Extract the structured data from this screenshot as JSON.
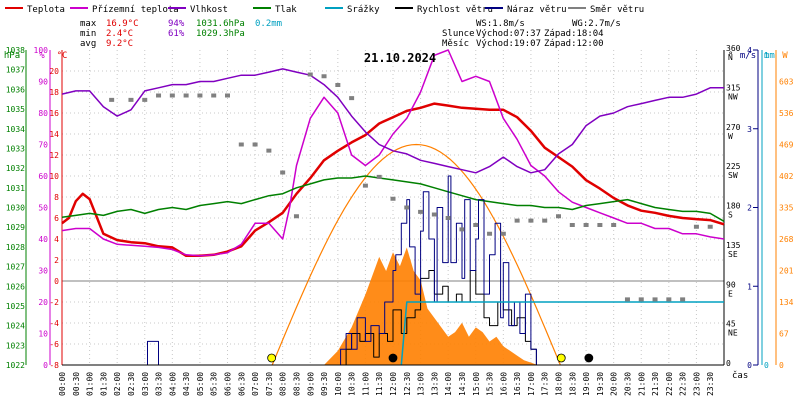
{
  "chart_data": {
    "type": "line",
    "title": "21.10.2024",
    "xlabel": "čas",
    "x_ticks": [
      "00:00",
      "00:30",
      "01:00",
      "01:30",
      "02:00",
      "02:30",
      "03:00",
      "03:30",
      "04:00",
      "04:30",
      "05:00",
      "05:30",
      "06:00",
      "06:30",
      "07:00",
      "07:30",
      "08:00",
      "08:30",
      "09:00",
      "09:30",
      "10:00",
      "10:30",
      "11:00",
      "11:30",
      "12:00",
      "12:30",
      "13:00",
      "13:30",
      "14:00",
      "14:30",
      "15:00",
      "15:30",
      "16:00",
      "16:30",
      "17:00",
      "17:30",
      "18:00",
      "18:30",
      "19:00",
      "19:30",
      "20:00",
      "20:30",
      "21:00",
      "21:30",
      "22:00",
      "22:30",
      "23:00",
      "23:30"
    ],
    "legend": [
      {
        "label": "Teplota",
        "color": "#e00000",
        "style": "line"
      },
      {
        "label": "Přízemní teplota",
        "color": "#cc00cc",
        "style": "line"
      },
      {
        "label": "Vlhkost",
        "color": "#8000c0",
        "style": "line"
      },
      {
        "label": "Tlak",
        "color": "#008000",
        "style": "line"
      },
      {
        "label": "Srážky",
        "color": "#00a0c0",
        "style": "line"
      },
      {
        "label": "Rychlost větru",
        "color": "#000000",
        "style": "line"
      },
      {
        "label": "Náraz větru",
        "color": "#000080",
        "style": "line"
      },
      {
        "label": "Směr větru",
        "color": "#808080",
        "style": "line"
      }
    ],
    "stats": {
      "max": {
        "label": "max",
        "temp": "16.9°C",
        "hum": "94%",
        "press": "1031.6hPa",
        "rain": "0.2mm"
      },
      "min": {
        "label": "min",
        "temp": "2.4°C",
        "hum": "61%",
        "press": "1029.3hPa"
      },
      "avg": {
        "label": "avg",
        "temp": "9.2°C"
      }
    },
    "info": {
      "ws": "WS:1.8m/s",
      "wg": "WG:2.7m/s",
      "sun_label": "Slunce",
      "sun_rise": "Východ:07:37",
      "sun_set": "Západ:18:04",
      "moon_label": "Měsíc",
      "moon_rise": "Východ:19:07",
      "moon_set": "Západ:12:00"
    },
    "axes": {
      "press": {
        "unit": "hPa",
        "range": [
          1022,
          1038
        ],
        "ticks": [
          "1038",
          "1037",
          "1036",
          "1035",
          "1034",
          "1033",
          "1032",
          "1031",
          "1030",
          "1029",
          "1028",
          "1027",
          "1026",
          "1025",
          "1024",
          "1023",
          "1022"
        ]
      },
      "hum": {
        "unit": "%",
        "range": [
          0,
          100
        ],
        "ticks": [
          "100",
          "90",
          "80",
          "70",
          "60",
          "50",
          "40",
          "30",
          "20",
          "10",
          "0"
        ]
      },
      "temp": {
        "unit": "°C",
        "range": [
          -8,
          22
        ],
        "ticks": [
          "20",
          "18",
          "16",
          "14",
          "12",
          "10",
          "8",
          "6",
          "4",
          "2",
          "0",
          "-2",
          "-4",
          "-6",
          "-8"
        ]
      },
      "dir": {
        "unit": "°",
        "range": [
          0,
          360
        ],
        "ticks": [
          {
            "v": "360",
            "d": "N"
          },
          {
            "v": "315",
            "d": "NW"
          },
          {
            "v": "270",
            "d": "W"
          },
          {
            "v": "225",
            "d": "SW"
          },
          {
            "v": "180",
            "d": "S"
          },
          {
            "v": "135",
            "d": "SE"
          },
          {
            "v": "90",
            "d": "E"
          },
          {
            "v": "45",
            "d": "NE"
          },
          {
            "v": "0",
            "d": ""
          }
        ]
      },
      "wind": {
        "unit": "m/s",
        "range": [
          0,
          4
        ],
        "ticks": [
          "4",
          "3",
          "2",
          "1",
          "0"
        ]
      },
      "rain": {
        "unit": "mm",
        "range": [
          0,
          1
        ],
        "ticks": [
          "1",
          "0"
        ]
      },
      "solar": {
        "unit": "W",
        "range": [
          0,
          670
        ],
        "ticks": [
          "603",
          "536",
          "469",
          "402",
          "335",
          "268",
          "201",
          "134",
          "67",
          "0"
        ]
      }
    },
    "series": [
      {
        "name": "Teplota",
        "axis": "temp",
        "color": "#e00000",
        "x": [
          0,
          0.25,
          0.5,
          0.75,
          1,
          1.5,
          2,
          2.5,
          3,
          3.5,
          4,
          4.5,
          5,
          5.5,
          6,
          6.5,
          7,
          7.5,
          8,
          8.5,
          9,
          9.5,
          10,
          10.5,
          11,
          11.5,
          12,
          12.5,
          13,
          13.5,
          14,
          14.5,
          15,
          15.5,
          16,
          16.5,
          17,
          17.5,
          18,
          18.5,
          19,
          19.5,
          20,
          20.5,
          21,
          21.5,
          22,
          22.5,
          23,
          23.5,
          24
        ],
        "y": [
          5.5,
          6,
          7.6,
          8.3,
          7.8,
          4.5,
          3.9,
          3.7,
          3.6,
          3.3,
          3.2,
          2.4,
          2.4,
          2.5,
          2.8,
          3.3,
          4.8,
          5.6,
          6.5,
          8.3,
          9.8,
          11.5,
          12.4,
          13.2,
          13.9,
          15,
          15.6,
          16.2,
          16.5,
          16.9,
          16.7,
          16.5,
          16.4,
          16.3,
          16.3,
          15.6,
          14.3,
          12.7,
          11.8,
          10.9,
          9.6,
          8.8,
          7.9,
          7.2,
          6.7,
          6.5,
          6.2,
          6,
          5.9,
          5.8,
          5.4
        ]
      },
      {
        "name": "Přízemní teplota",
        "axis": "temp",
        "color": "#cc00cc",
        "x": [
          0,
          0.5,
          1,
          1.5,
          2,
          2.5,
          3,
          3.5,
          4,
          4.5,
          5,
          5.5,
          6,
          6.5,
          7,
          7.5,
          8,
          8.25,
          8.5,
          9,
          9.5,
          10,
          10.5,
          11,
          11.5,
          12,
          12.5,
          13,
          13.5,
          14,
          14.5,
          15,
          15.5,
          16,
          16.5,
          17,
          17.5,
          18,
          18.5,
          19,
          19.5,
          20,
          20.5,
          21,
          21.5,
          22,
          22.5,
          23,
          23.5,
          24
        ],
        "y": [
          4.8,
          5,
          5,
          4,
          3.5,
          3.4,
          3.3,
          3.2,
          3,
          2.5,
          2.4,
          2.5,
          2.7,
          3.5,
          5.5,
          5.5,
          4,
          7,
          11,
          15.5,
          17.5,
          16,
          12,
          11,
          12,
          14,
          15.5,
          18,
          21.5,
          22,
          19,
          19.5,
          19,
          15.5,
          13.5,
          11,
          10,
          8.5,
          7.5,
          7,
          6.5,
          6,
          5.5,
          5.5,
          5,
          5,
          4.5,
          4.5,
          4.2,
          4
        ]
      },
      {
        "name": "Vlhkost",
        "axis": "hum",
        "color": "#8000c0",
        "x": [
          0,
          0.5,
          1,
          1.5,
          2,
          2.5,
          3,
          3.5,
          4,
          4.5,
          5,
          5.5,
          6,
          6.5,
          7,
          7.5,
          8,
          8.5,
          9,
          9.5,
          10,
          10.5,
          11,
          11.5,
          12,
          12.5,
          13,
          13.5,
          14,
          14.5,
          15,
          15.5,
          16,
          16.5,
          17,
          17.5,
          18,
          18.5,
          19,
          19.5,
          20,
          20.5,
          21,
          21.5,
          22,
          22.5,
          23,
          23.5,
          24
        ],
        "y": [
          86,
          87,
          87,
          82,
          79,
          81,
          87,
          88,
          89,
          89,
          90,
          90,
          91,
          92,
          92,
          93,
          94,
          93,
          92,
          89,
          85,
          79,
          74,
          70,
          68,
          67,
          65,
          64,
          63,
          62,
          61,
          63,
          66,
          63,
          61,
          62,
          67,
          70,
          76,
          79,
          80,
          82,
          83,
          84,
          85,
          85,
          86,
          88,
          88
        ]
      },
      {
        "name": "Tlak",
        "axis": "press",
        "color": "#008000",
        "x": [
          0,
          0.5,
          1,
          1.5,
          2,
          2.5,
          3,
          3.5,
          4,
          4.5,
          5,
          5.5,
          6,
          6.5,
          7,
          7.5,
          8,
          8.5,
          9,
          9.5,
          10,
          10.5,
          11,
          11.5,
          12,
          12.5,
          13,
          13.5,
          14,
          14.5,
          15,
          15.5,
          16,
          16.5,
          17,
          17.5,
          18,
          18.5,
          19,
          19.5,
          20,
          20.5,
          21,
          21.5,
          22,
          22.5,
          23,
          23.5,
          24
        ],
        "y": [
          1029.5,
          1029.6,
          1029.7,
          1029.6,
          1029.8,
          1029.9,
          1029.7,
          1029.9,
          1030,
          1029.9,
          1030.1,
          1030.2,
          1030.3,
          1030.2,
          1030.4,
          1030.6,
          1030.7,
          1031,
          1031.2,
          1031.4,
          1031.5,
          1031.5,
          1031.6,
          1031.5,
          1031.4,
          1031.3,
          1031.2,
          1031,
          1030.8,
          1030.6,
          1030.4,
          1030.3,
          1030.2,
          1030.1,
          1030.1,
          1030,
          1030,
          1029.9,
          1030.1,
          1030.2,
          1030.3,
          1030.4,
          1030.2,
          1030,
          1029.9,
          1029.8,
          1029.8,
          1029.7,
          1029.3
        ]
      },
      {
        "name": "Rychlost větru",
        "axis": "wind",
        "color": "#000000",
        "x": [
          0,
          9,
          10,
          10.3,
          10.5,
          10.8,
          11,
          11.3,
          11.5,
          11.8,
          12,
          12.3,
          12.5,
          12.8,
          13,
          13.3,
          13.5,
          13.8,
          14,
          14.3,
          14.5,
          14.8,
          15,
          15.3,
          15.5,
          15.8,
          16,
          16.3,
          16.5,
          16.8,
          17,
          17.2,
          24
        ],
        "y": [
          0,
          0,
          0,
          0.2,
          0.4,
          0.3,
          0.4,
          0.1,
          0.4,
          0.3,
          0.7,
          0.4,
          0.6,
          0.7,
          1.1,
          1.2,
          0.9,
          1,
          0.8,
          0.9,
          0.8,
          1.2,
          0.9,
          0.6,
          0.5,
          0.8,
          0.7,
          0.5,
          0.6,
          0.3,
          0.2,
          0,
          0
        ]
      },
      {
        "name": "Náraz větru",
        "axis": "wind",
        "color": "#000080",
        "x": [
          0,
          3,
          3.1,
          3.2,
          3.4,
          3.5,
          9,
          10,
          10.1,
          10.3,
          10.5,
          10.7,
          11,
          11.2,
          11.5,
          11.7,
          12,
          12.1,
          12.3,
          12.5,
          12.6,
          12.8,
          13,
          13.1,
          13.3,
          13.5,
          13.6,
          13.8,
          14,
          14.1,
          14.3,
          14.5,
          14.6,
          14.8,
          15,
          15.1,
          15.3,
          15.5,
          15.7,
          15.9,
          16,
          16.2,
          16.4,
          16.6,
          16.8,
          17,
          17.2,
          24
        ],
        "y": [
          0,
          0,
          0.3,
          0.3,
          0.3,
          0,
          0,
          0,
          0.2,
          0.4,
          0.2,
          0.6,
          0.3,
          0.5,
          0.4,
          0.8,
          1.2,
          1.4,
          1.8,
          2.1,
          1.5,
          0.9,
          1.7,
          2.2,
          1.6,
          0.8,
          2,
          1.3,
          2.4,
          1.3,
          1.8,
          1.1,
          2.1,
          1.2,
          1.6,
          2.1,
          0.9,
          1.4,
          1.8,
          0.6,
          1.3,
          0.5,
          0.8,
          0.4,
          0.9,
          0.2,
          0,
          0
        ]
      },
      {
        "name": "Srážky",
        "axis": "rain",
        "color": "#00a0c0",
        "x": [
          12.3,
          12.5,
          24
        ],
        "y": [
          0,
          0.2,
          0.2
        ]
      },
      {
        "name": "Směr větru",
        "axis": "dir",
        "color": "#808080",
        "x": [
          1.8,
          2.5,
          3,
          3.5,
          4,
          4.5,
          5,
          5.5,
          6,
          6.5,
          7,
          7.5,
          8,
          8.5,
          9,
          9.5,
          10,
          10.5,
          11,
          11.5,
          12,
          12.5,
          13,
          13.5,
          14,
          14.5,
          15,
          15.5,
          16,
          16.5,
          17,
          17.5,
          18,
          18.5,
          19,
          19.5,
          20,
          20.5,
          21,
          21.5,
          22,
          22.5,
          23,
          23.5
        ],
        "y": [
          303,
          303,
          303,
          308,
          308,
          308,
          308,
          308,
          308,
          252,
          252,
          245,
          220,
          170,
          332,
          330,
          320,
          305,
          205,
          215,
          190,
          180,
          175,
          172,
          168,
          155,
          160,
          150,
          150,
          165,
          165,
          165,
          170,
          160,
          160,
          160,
          160,
          75,
          75,
          75,
          75,
          75,
          158,
          158
        ]
      }
    ],
    "solar_radiation": {
      "axis": "solar",
      "color": "#ff8000",
      "x": [
        9.5,
        10,
        10.5,
        11,
        11.25,
        11.5,
        11.75,
        12,
        12.25,
        12.5,
        12.75,
        13,
        13.25,
        13.5,
        13.75,
        14,
        14.25,
        14.5,
        14.75,
        15,
        15.25,
        15.5,
        15.75,
        16,
        16.25,
        16.5,
        16.75,
        17,
        17.25
      ],
      "y": [
        0,
        30,
        80,
        150,
        190,
        230,
        200,
        240,
        210,
        250,
        200,
        180,
        120,
        100,
        80,
        60,
        70,
        90,
        60,
        80,
        70,
        50,
        60,
        40,
        30,
        20,
        10,
        5,
        0
      ]
    },
    "theoretical_solar": {
      "color": "#ff8000",
      "sunrise": 7.62,
      "sunset": 18.07,
      "peak": "469"
    },
    "markers": [
      {
        "type": "sunrise",
        "x": 7.6,
        "color": "#ffff00"
      },
      {
        "type": "moonset",
        "x": 12,
        "color": "#000000"
      },
      {
        "type": "sunset",
        "x": 18.1,
        "color": "#ffff00"
      },
      {
        "type": "moonrise",
        "x": 19.1,
        "color": "#000000"
      }
    ]
  }
}
